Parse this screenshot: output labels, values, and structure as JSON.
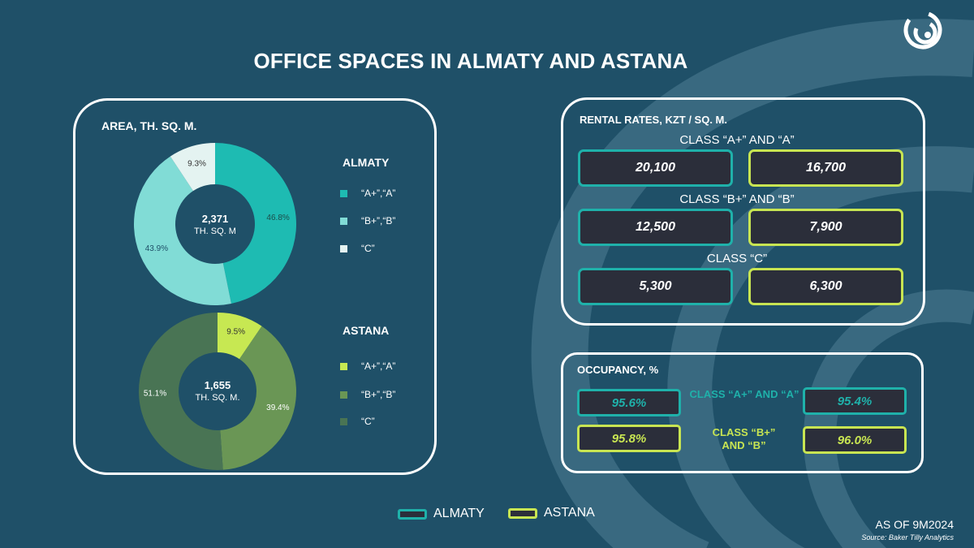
{
  "title": "OFFICE SPACES IN ALMATY AND ASTANA",
  "colors": {
    "background": "#1f5068",
    "almaty_accent": "#1fb1aa",
    "astana_accent": "#c8e552",
    "almaty_a": "#1ebbb2",
    "almaty_b": "#81dcd6",
    "almaty_c": "#e4f3f1",
    "astana_a": "#c7e852",
    "astana_b": "#6a9655",
    "astana_c": "#497454",
    "box_fill": "#2b2e3a"
  },
  "area_panel": {
    "heading": "AREA, TH. SQ. M."
  },
  "chart_data": [
    {
      "type": "pie",
      "name": "ALMATY",
      "center_value": "2,371",
      "center_unit": "TH. SQ. M",
      "categories": [
        "“A+”,“A”",
        "“B+”,“B”",
        "“C”"
      ],
      "values": [
        46.8,
        43.9,
        9.3
      ],
      "labels": [
        "46.8%",
        "43.9%",
        "9.3%"
      ],
      "colors": [
        "#1ebbb2",
        "#81dcd6",
        "#e4f3f1"
      ]
    },
    {
      "type": "pie",
      "name": "ASTANA",
      "center_value": "1,655",
      "center_unit": "TH. SQ. M.",
      "categories": [
        "“A+”,“A”",
        "“B+”,“B”",
        "“C”"
      ],
      "values": [
        9.5,
        39.4,
        51.1
      ],
      "labels": [
        "9.5%",
        "39.4%",
        "51.1%"
      ],
      "colors": [
        "#c7e852",
        "#6a9655",
        "#497454"
      ]
    }
  ],
  "rental": {
    "heading": "RENTAL RATES, KZT / SQ. M.",
    "rows": [
      {
        "label": "CLASS “A+” AND “A”",
        "almaty": "20,100",
        "astana": "16,700"
      },
      {
        "label": "CLASS “B+” AND “B”",
        "almaty": "12,500",
        "astana": "7,900"
      },
      {
        "label": "CLASS “C”",
        "almaty": "5,300",
        "astana": "6,300"
      }
    ]
  },
  "occupancy": {
    "heading": "OCCUPANCY, %",
    "rows": [
      {
        "label": "CLASS “A+” AND “A”",
        "almaty": "95.6%",
        "astana": "95.4%"
      },
      {
        "label_line1": "CLASS “B+”",
        "label_line2": "AND “B”",
        "almaty": "95.8%",
        "astana": "96.0%"
      }
    ]
  },
  "legend": {
    "almaty": "ALMATY",
    "astana": "ASTANA"
  },
  "as_of": "AS OF 9M2024",
  "source": "Source: Baker Tilly Analytics",
  "icons": {
    "logo": "baker-tilly-swirl-logo"
  }
}
